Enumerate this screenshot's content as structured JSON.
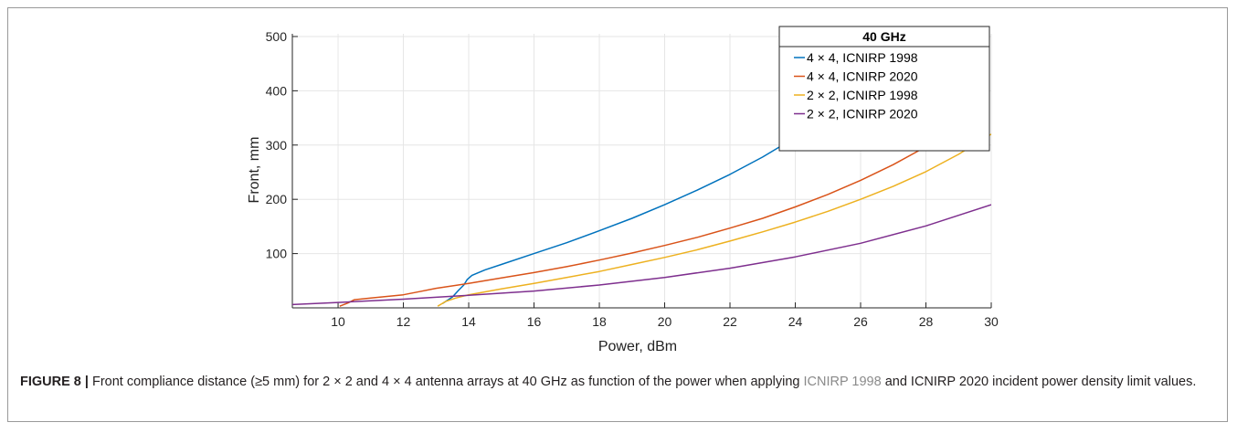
{
  "chart_data": {
    "type": "line",
    "title": "",
    "xlabel": "Power, dBm",
    "ylabel": "Front, mm",
    "xlim": [
      8.6,
      30
    ],
    "ylim": [
      0,
      505
    ],
    "xticks": [
      10,
      12,
      14,
      16,
      18,
      20,
      22,
      24,
      26,
      28,
      30
    ],
    "yticks": [
      100,
      200,
      300,
      400,
      500
    ],
    "grid": true,
    "legend": {
      "title": "40 GHz",
      "placement": "top-right"
    },
    "series": [
      {
        "name": "4 × 4, ICNIRP 1998",
        "color": "#0072BD",
        "points": [
          [
            13.2,
            8
          ],
          [
            13.5,
            20
          ],
          [
            13.7,
            33
          ],
          [
            13.85,
            42
          ],
          [
            13.95,
            52
          ],
          [
            14.1,
            60
          ],
          [
            14.5,
            70
          ],
          [
            15,
            80
          ],
          [
            16,
            100
          ],
          [
            17,
            120
          ],
          [
            18,
            142
          ],
          [
            19,
            165
          ],
          [
            20,
            190
          ],
          [
            21,
            217
          ],
          [
            22,
            246
          ],
          [
            23,
            278
          ],
          [
            24,
            314
          ],
          [
            24.6,
            338
          ]
        ]
      },
      {
        "name": "4 × 4, ICNIRP 2020",
        "color": "#D95319",
        "points": [
          [
            10.05,
            3
          ],
          [
            10.3,
            9
          ],
          [
            10.5,
            15
          ],
          [
            11,
            18
          ],
          [
            12,
            24
          ],
          [
            12.5,
            30
          ],
          [
            13,
            36
          ],
          [
            14,
            45
          ],
          [
            15,
            55
          ],
          [
            16,
            65
          ],
          [
            17,
            76
          ],
          [
            18,
            88
          ],
          [
            19,
            101
          ],
          [
            20,
            115
          ],
          [
            21,
            130
          ],
          [
            22,
            147
          ],
          [
            23,
            165
          ],
          [
            24,
            186
          ],
          [
            25,
            209
          ],
          [
            26,
            235
          ],
          [
            27,
            264
          ],
          [
            28,
            297
          ],
          [
            29,
            333
          ],
          [
            29.2,
            340
          ]
        ]
      },
      {
        "name": "2 × 2, ICNIRP 1998",
        "color": "#EDB120",
        "points": [
          [
            13.05,
            3
          ],
          [
            13.3,
            12
          ],
          [
            13.6,
            18
          ],
          [
            14,
            24
          ],
          [
            15,
            35
          ],
          [
            16,
            45
          ],
          [
            17,
            56
          ],
          [
            18,
            67
          ],
          [
            19,
            80
          ],
          [
            20,
            93
          ],
          [
            21,
            107
          ],
          [
            22,
            123
          ],
          [
            23,
            140
          ],
          [
            24,
            158
          ],
          [
            25,
            178
          ],
          [
            26,
            200
          ],
          [
            27,
            224
          ],
          [
            28,
            251
          ],
          [
            29,
            283
          ],
          [
            30,
            320
          ]
        ]
      },
      {
        "name": "2 × 2, ICNIRP 2020",
        "color": "#7E2F8E",
        "points": [
          [
            8.6,
            6
          ],
          [
            10,
            10
          ],
          [
            12,
            16
          ],
          [
            14,
            23
          ],
          [
            16,
            31
          ],
          [
            18,
            42
          ],
          [
            20,
            56
          ],
          [
            22,
            73
          ],
          [
            24,
            94
          ],
          [
            26,
            119
          ],
          [
            28,
            151
          ],
          [
            30,
            190
          ]
        ]
      }
    ]
  },
  "caption": {
    "label": "FIGURE 8 |",
    "text_1": " Front compliance distance (≥5 mm) for 2 × 2 and 4 × 4 antenna arrays at 40 GHz as function of the power when applying ",
    "link": "ICNIRP 1998",
    "text_2": " and ICNIRP 2020 incident power density limit values."
  }
}
